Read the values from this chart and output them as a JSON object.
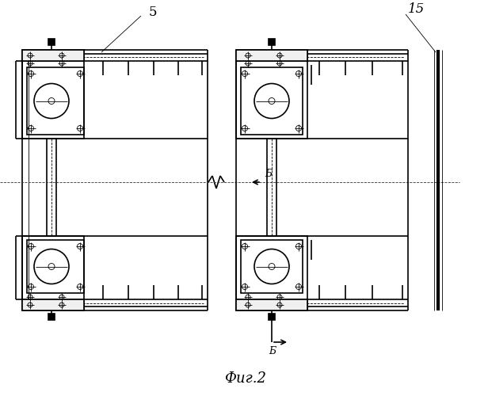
{
  "figure_caption": "Фиг.2",
  "label_5": "5",
  "label_15": "15",
  "label_B": "Б",
  "bg_color": "#ffffff",
  "line_color": "#000000"
}
